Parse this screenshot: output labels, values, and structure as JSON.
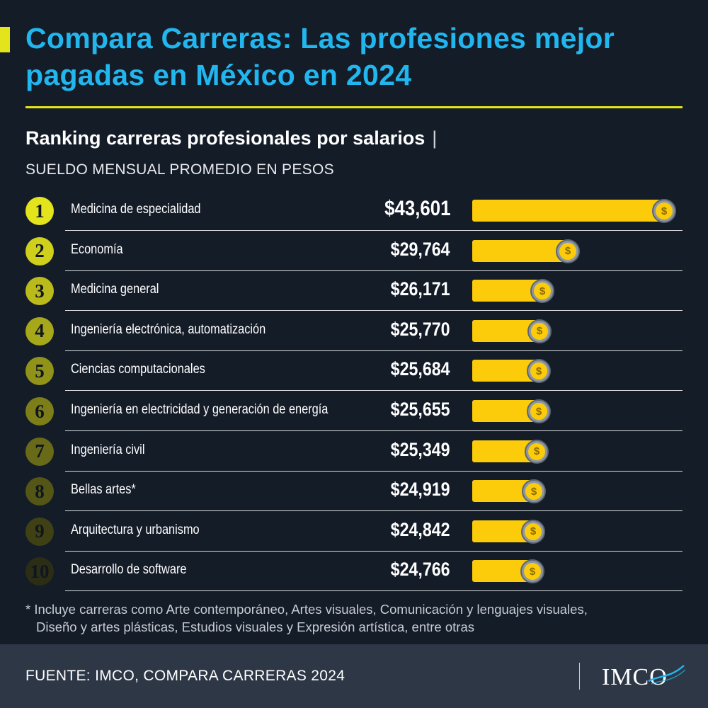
{
  "title": "Compara Carreras: Las profesiones mejor pagadas en México en 2024",
  "subtitle": "Ranking carreras profesionales por salarios",
  "subtitle_separator": "|",
  "units": "SUELDO MENSUAL PROMEDIO EN PESOS",
  "footnote_line1": "* Incluye carreras como Arte contemporáneo, Artes visuales, Comunicación y lenguajes visuales,",
  "footnote_line2": "Diseño y artes plásticas, Estudios visuales y Expresión artística, entre otras",
  "source": "FUENTE: IMCO, COMPARA CARRERAS 2024",
  "logo": "IMCO",
  "colors": {
    "background": "#141c28",
    "title": "#22b6ef",
    "accent": "#e3e41c",
    "bar": "#fccc0a",
    "footer": "#2e3746",
    "rank_circle_gradient": [
      "#e3e41c",
      "#2b2d14"
    ]
  },
  "icons": {
    "row_end": "coin-dollar-icon"
  },
  "chart_data": {
    "type": "bar",
    "orientation": "horizontal",
    "categories": [
      "Medicina de especialidad",
      "Economía",
      "Medicina general",
      "Ingeniería electrónica, automatización",
      "Ciencias computacionales",
      "Ingeniería en electricidad y generación de energía",
      "Ingeniería civil",
      "Bellas artes*",
      "Arquitectura y urbanismo",
      "Desarrollo de software"
    ],
    "ranks": [
      "1",
      "2",
      "3",
      "4",
      "5",
      "6",
      "7",
      "8",
      "9",
      "10"
    ],
    "values": [
      43601,
      29764,
      26171,
      25770,
      25684,
      25655,
      25349,
      24919,
      24842,
      24766
    ],
    "value_labels": [
      "$43,601",
      "$29,764",
      "$26,171",
      "$25,770",
      "$25,684",
      "$25,655",
      "$25,349",
      "$24,919",
      "$24,842",
      "$24,766"
    ],
    "grid": false,
    "legend": "none"
  }
}
